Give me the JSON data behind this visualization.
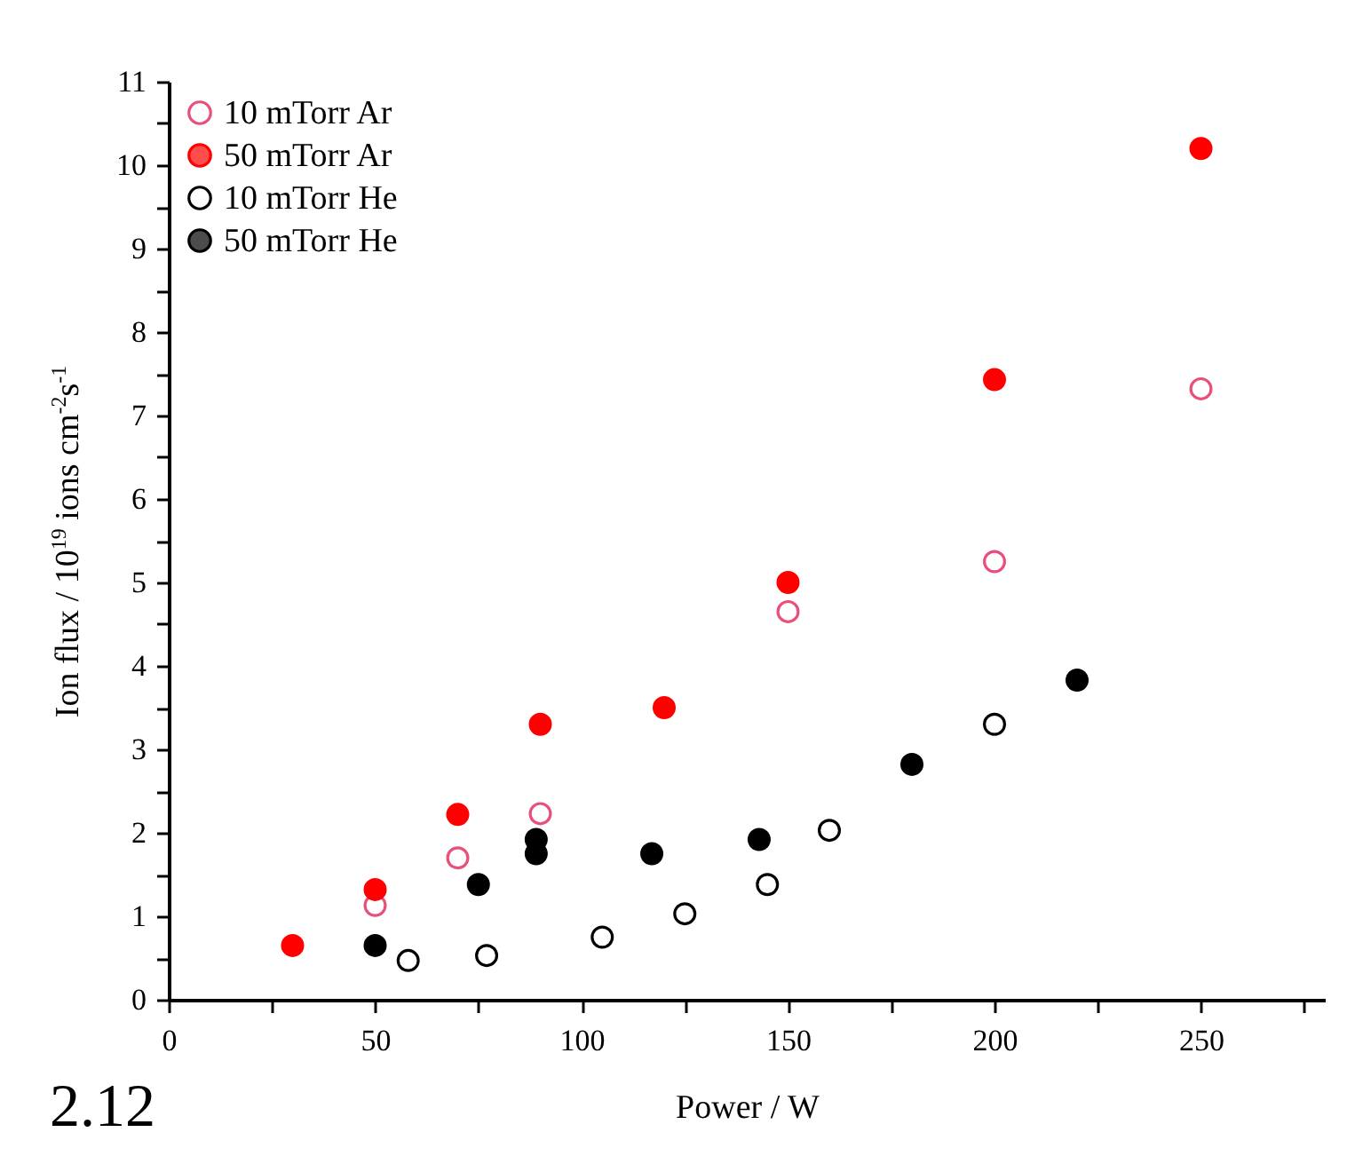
{
  "chart_data": {
    "type": "scatter",
    "xlabel": "Power / W",
    "ylabel": "Ion flux / 10$^{19}$ ions cm$^{-2}$s$^{-1}$",
    "annotations": [
      "2.12"
    ],
    "xlim": [
      0,
      280
    ],
    "xticks": [
      0,
      {
        "value": 25,
        "label": null
      },
      50,
      {
        "value": 75,
        "label": null
      },
      100,
      {
        "value": 125,
        "label": null
      },
      150,
      {
        "value": 175,
        "label": null
      },
      200,
      {
        "value": 225,
        "label": null
      },
      250,
      {
        "value": 275,
        "label": null
      }
    ],
    "ylim": [
      0,
      11
    ],
    "yticks": [
      0,
      {
        "value": 0.5,
        "label": null
      },
      1,
      {
        "value": 1.5,
        "label": null
      },
      2,
      {
        "value": 2.5,
        "label": null
      },
      3,
      {
        "value": 3.5,
        "label": null
      },
      4,
      {
        "value": 4.5,
        "label": null
      },
      5,
      {
        "value": 5.5,
        "label": null
      },
      6,
      {
        "value": 6.5,
        "label": null
      },
      7,
      {
        "value": 7.5,
        "label": null
      },
      8,
      {
        "value": 8.5,
        "label": null
      },
      9,
      {
        "value": 9.5,
        "label": null
      },
      10,
      {
        "value": 10.5,
        "label": null
      },
      11
    ],
    "grid": false,
    "legend": "top left",
    "series": [
      {
        "name": "10 mTorr Ar",
        "color": "#e8507a",
        "marker": "circle-open",
        "x": [
          50,
          70,
          90,
          150,
          200,
          250
        ],
        "values": [
          1.13,
          1.7,
          2.23,
          4.65,
          5.25,
          7.32
        ]
      },
      {
        "name": "50 mTorr Ar",
        "color": "#ff0000",
        "marker": "circle",
        "x": [
          30,
          50,
          70,
          90,
          120,
          150,
          200,
          250
        ],
        "values": [
          0.65,
          1.32,
          2.22,
          3.3,
          3.5,
          5.0,
          7.43,
          10.2
        ]
      },
      {
        "name": "10 mTorr He",
        "color": "#000000",
        "marker": "circle-open",
        "x": [
          58,
          77,
          105,
          125,
          145,
          160,
          200
        ],
        "values": [
          0.47,
          0.53,
          0.75,
          1.03,
          1.38,
          2.03,
          3.3
        ]
      },
      {
        "name": "50 mTorr He",
        "color": "#000000",
        "marker": "circle",
        "x": [
          50,
          75,
          89,
          89,
          117,
          143,
          180,
          220
        ],
        "values": [
          0.65,
          1.38,
          1.92,
          1.75,
          1.75,
          1.92,
          2.82,
          3.83
        ]
      }
    ]
  }
}
